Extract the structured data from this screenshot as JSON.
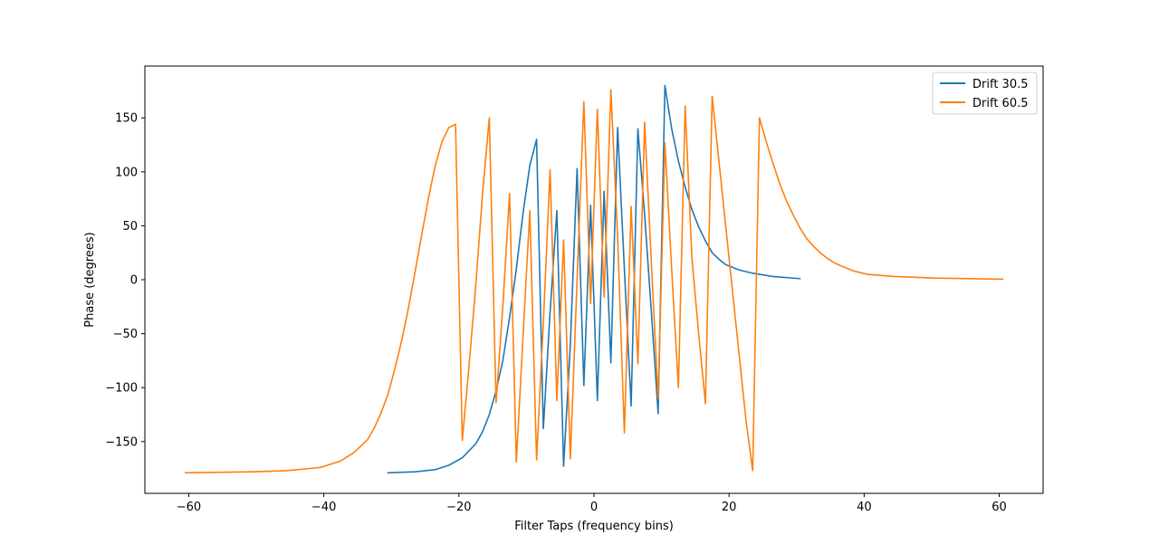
{
  "chart_data": {
    "type": "line",
    "title": "",
    "xlabel": "Filter Taps (frequency bins)",
    "ylabel": "Phase (degrees)",
    "xlim": [
      -66.5,
      66.5
    ],
    "ylim": [
      -198,
      198
    ],
    "xticks": [
      -60,
      -40,
      -20,
      0,
      20,
      40,
      60
    ],
    "yticks": [
      -150,
      -100,
      -50,
      0,
      50,
      100,
      150
    ],
    "xtick_labels": [
      "−60",
      "−40",
      "−20",
      "0",
      "20",
      "40",
      "60"
    ],
    "ytick_labels": [
      "−150",
      "−100",
      "−50",
      "0",
      "50",
      "100",
      "150"
    ],
    "grid": false,
    "legend_position": "top-right",
    "series": [
      {
        "name": "Drift 30.5",
        "color": "#1f77b4",
        "points": [
          [
            -30.5,
            -179
          ],
          [
            -26.5,
            -178
          ],
          [
            -23.5,
            -176
          ],
          [
            -21.5,
            -172
          ],
          [
            -19.5,
            -165
          ],
          [
            -17.5,
            -152
          ],
          [
            -16.5,
            -141
          ],
          [
            -15.5,
            -125
          ],
          [
            -14.5,
            -103
          ],
          [
            -13.5,
            -75
          ],
          [
            -12.5,
            -35
          ],
          [
            -11.5,
            10
          ],
          [
            -10.5,
            62
          ],
          [
            -9.5,
            106
          ],
          [
            -8.5,
            130
          ],
          [
            -7.5,
            -138
          ],
          [
            -6.5,
            -30
          ],
          [
            -5.5,
            64
          ],
          [
            -4.5,
            -173
          ],
          [
            -3.5,
            -60
          ],
          [
            -2.5,
            103
          ],
          [
            -1.5,
            -98
          ],
          [
            -0.5,
            69
          ],
          [
            0.5,
            -112
          ],
          [
            1.5,
            82
          ],
          [
            2.5,
            -77
          ],
          [
            3.5,
            141
          ],
          [
            4.5,
            10
          ],
          [
            5.5,
            -117
          ],
          [
            6.5,
            140
          ],
          [
            7.5,
            60
          ],
          [
            8.5,
            -30
          ],
          [
            9.5,
            -124
          ],
          [
            10.5,
            180
          ],
          [
            11.5,
            140
          ],
          [
            12.5,
            110
          ],
          [
            13.5,
            86
          ],
          [
            14.5,
            65
          ],
          [
            15.5,
            49
          ],
          [
            16.5,
            36
          ],
          [
            17.5,
            25
          ],
          [
            18.5,
            19
          ],
          [
            19.5,
            14
          ],
          [
            21.5,
            9
          ],
          [
            23.5,
            6
          ],
          [
            26.5,
            3
          ],
          [
            30.5,
            1
          ]
        ]
      },
      {
        "name": "Drift 60.5",
        "color": "#ff7f0e",
        "points": [
          [
            -60.5,
            -179
          ],
          [
            -50.5,
            -178
          ],
          [
            -45.5,
            -177
          ],
          [
            -40.5,
            -174
          ],
          [
            -37.5,
            -168
          ],
          [
            -35.5,
            -160
          ],
          [
            -33.5,
            -148
          ],
          [
            -32.5,
            -137
          ],
          [
            -31.5,
            -123
          ],
          [
            -30.5,
            -106
          ],
          [
            -29.5,
            -83
          ],
          [
            -28.5,
            -57
          ],
          [
            -27.5,
            -27
          ],
          [
            -26.5,
            7
          ],
          [
            -25.5,
            42
          ],
          [
            -24.5,
            76
          ],
          [
            -23.5,
            106
          ],
          [
            -22.5,
            128
          ],
          [
            -21.5,
            141
          ],
          [
            -20.5,
            144
          ],
          [
            -19.5,
            -149
          ],
          [
            -18.5,
            -80
          ],
          [
            -17.5,
            -5
          ],
          [
            -16.5,
            80
          ],
          [
            -15.5,
            150
          ],
          [
            -14.5,
            -114
          ],
          [
            -13.5,
            -25
          ],
          [
            -12.5,
            80
          ],
          [
            -11.5,
            -169
          ],
          [
            -10.5,
            -52
          ],
          [
            -9.5,
            64
          ],
          [
            -8.5,
            -167
          ],
          [
            -7.5,
            -40
          ],
          [
            -6.5,
            102
          ],
          [
            -5.5,
            -112
          ],
          [
            -4.5,
            37
          ],
          [
            -3.5,
            -166
          ],
          [
            -2.5,
            0
          ],
          [
            -1.5,
            165
          ],
          [
            -0.5,
            -22
          ],
          [
            0.5,
            158
          ],
          [
            1.5,
            -16
          ],
          [
            2.5,
            176
          ],
          [
            3.5,
            40
          ],
          [
            4.5,
            -142
          ],
          [
            5.5,
            68
          ],
          [
            6.5,
            -78
          ],
          [
            7.5,
            146
          ],
          [
            8.5,
            15
          ],
          [
            9.5,
            -110
          ],
          [
            10.5,
            127
          ],
          [
            11.5,
            10
          ],
          [
            12.5,
            -100
          ],
          [
            13.5,
            161
          ],
          [
            14.5,
            20
          ],
          [
            15.5,
            -50
          ],
          [
            16.5,
            -115
          ],
          [
            17.5,
            170
          ],
          [
            18.5,
            110
          ],
          [
            19.5,
            50
          ],
          [
            20.5,
            -10
          ],
          [
            21.5,
            -70
          ],
          [
            22.5,
            -130
          ],
          [
            23.5,
            -177
          ],
          [
            24.5,
            150
          ],
          [
            25.5,
            128
          ],
          [
            26.5,
            108
          ],
          [
            27.5,
            89
          ],
          [
            28.5,
            73
          ],
          [
            29.5,
            60
          ],
          [
            30.5,
            48
          ],
          [
            31.5,
            38
          ],
          [
            32.5,
            31
          ],
          [
            33.5,
            25
          ],
          [
            34.5,
            20
          ],
          [
            35.5,
            16
          ],
          [
            36.5,
            13
          ],
          [
            38.5,
            8
          ],
          [
            40.5,
            5
          ],
          [
            44.5,
            3
          ],
          [
            50.5,
            1.5
          ],
          [
            60.5,
            0.5
          ]
        ]
      }
    ]
  }
}
